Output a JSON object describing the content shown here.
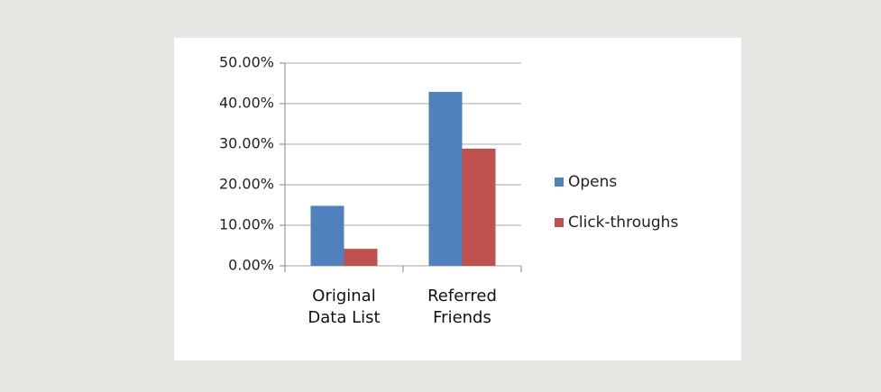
{
  "chart_data": {
    "type": "bar",
    "categories": [
      "Original Data List",
      "Referred Friends"
    ],
    "series": [
      {
        "name": "Opens",
        "color": "#4f81bd",
        "values": [
          14.8,
          42.9
        ]
      },
      {
        "name": "Click-throughs",
        "color": "#c0504d",
        "values": [
          4.2,
          28.9
        ]
      }
    ],
    "ylim": [
      0,
      50
    ],
    "yticks": [
      {
        "value": 0,
        "label": "0.00%"
      },
      {
        "value": 10,
        "label": "10.00%"
      },
      {
        "value": 20,
        "label": "20.00%"
      },
      {
        "value": 30,
        "label": "30.00%"
      },
      {
        "value": 40,
        "label": "40.00%"
      },
      {
        "value": 50,
        "label": "50.00%"
      }
    ],
    "grid": true,
    "legend": "right"
  }
}
